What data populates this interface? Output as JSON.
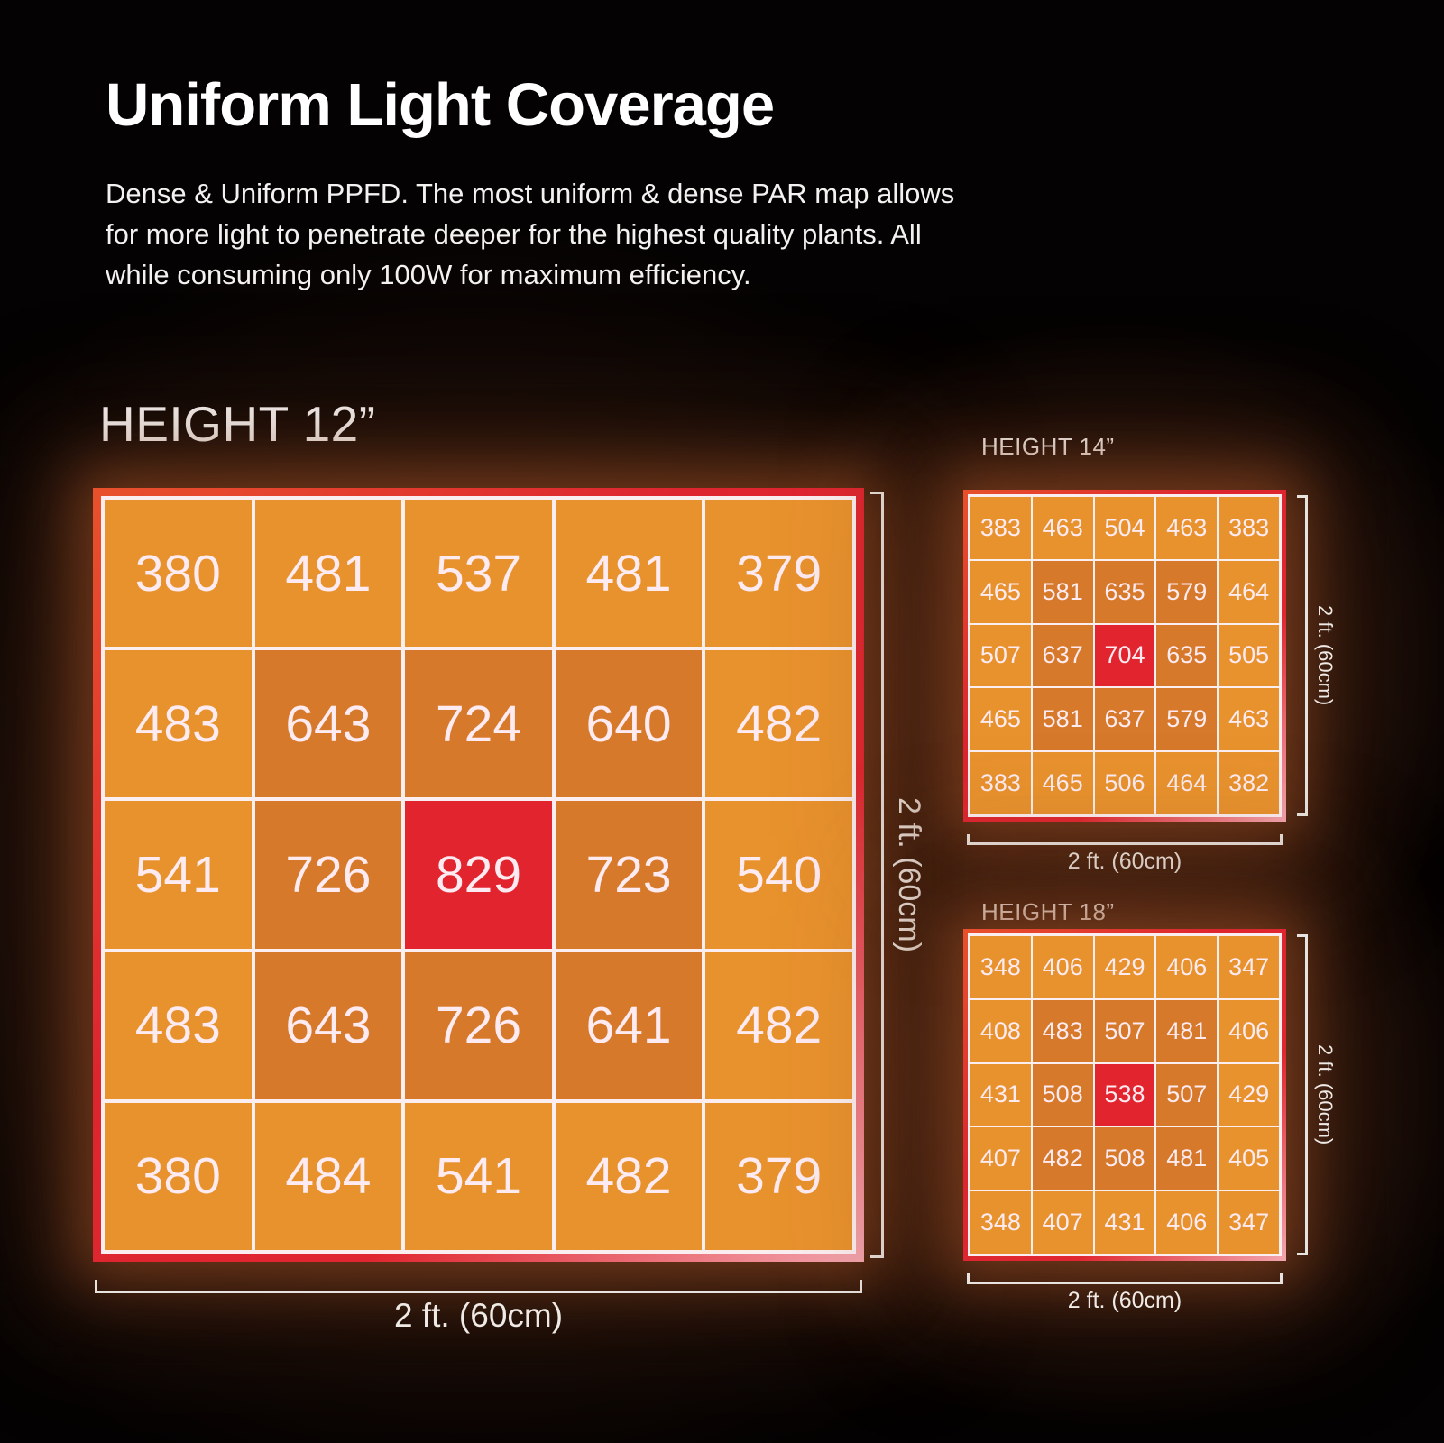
{
  "header": {
    "title": "Uniform Light Coverage",
    "description_lines": [
      "Dense & Uniform PPFD. The most uniform & dense PAR map allows",
      "for more light to penetrate deeper for the highest quality plants.  All",
      "while consuming only 100W for maximum efficiency."
    ]
  },
  "colors": {
    "background": "#040202",
    "text": "#ffffff",
    "cell_light": "#e8922e",
    "cell_dark": "#d7792a",
    "cell_hot": "#e2242e",
    "cell_text": "#fdebf1",
    "grid_line": "#fbeef0",
    "dimension_line": "#e9e3df",
    "frame_orange": "#e8512c",
    "frame_red": "#dd2530",
    "frame_pink": "#f3a6af"
  },
  "chart_data": [
    {
      "type": "heatmap",
      "title": "HEIGHT 12”",
      "width_label": "2 ft. (60cm)",
      "height_label": "2 ft. (60cm)",
      "rows": 5,
      "cols": 5,
      "values": [
        [
          380,
          481,
          537,
          481,
          379
        ],
        [
          483,
          643,
          724,
          640,
          482
        ],
        [
          541,
          726,
          829,
          723,
          540
        ],
        [
          483,
          643,
          726,
          641,
          482
        ],
        [
          380,
          484,
          541,
          482,
          379
        ]
      ],
      "levels": [
        [
          "light",
          "light",
          "light",
          "light",
          "light"
        ],
        [
          "light",
          "dark",
          "dark",
          "dark",
          "light"
        ],
        [
          "light",
          "dark",
          "hot",
          "dark",
          "light"
        ],
        [
          "light",
          "dark",
          "dark",
          "dark",
          "light"
        ],
        [
          "light",
          "light",
          "light",
          "light",
          "light"
        ]
      ]
    },
    {
      "type": "heatmap",
      "title": "HEIGHT 14”",
      "width_label": "2 ft. (60cm)",
      "height_label": "2 ft. (60cm)",
      "rows": 5,
      "cols": 5,
      "values": [
        [
          383,
          463,
          504,
          463,
          383
        ],
        [
          465,
          581,
          635,
          579,
          464
        ],
        [
          507,
          637,
          704,
          635,
          505
        ],
        [
          465,
          581,
          637,
          579,
          463
        ],
        [
          383,
          465,
          506,
          464,
          382
        ]
      ],
      "levels": [
        [
          "light",
          "light",
          "light",
          "light",
          "light"
        ],
        [
          "light",
          "dark",
          "dark",
          "dark",
          "light"
        ],
        [
          "light",
          "dark",
          "hot",
          "dark",
          "light"
        ],
        [
          "light",
          "dark",
          "dark",
          "dark",
          "light"
        ],
        [
          "light",
          "light",
          "light",
          "light",
          "light"
        ]
      ]
    },
    {
      "type": "heatmap",
      "title": "HEIGHT 18”",
      "width_label": "2 ft. (60cm)",
      "height_label": "2 ft. (60cm)",
      "rows": 5,
      "cols": 5,
      "values": [
        [
          348,
          406,
          429,
          406,
          347
        ],
        [
          408,
          483,
          507,
          481,
          406
        ],
        [
          431,
          508,
          538,
          507,
          429
        ],
        [
          407,
          482,
          508,
          481,
          405
        ],
        [
          348,
          407,
          431,
          406,
          347
        ]
      ],
      "levels": [
        [
          "light",
          "light",
          "light",
          "light",
          "light"
        ],
        [
          "light",
          "dark",
          "dark",
          "dark",
          "light"
        ],
        [
          "light",
          "dark",
          "hot",
          "dark",
          "light"
        ],
        [
          "light",
          "dark",
          "dark",
          "dark",
          "light"
        ],
        [
          "light",
          "light",
          "light",
          "light",
          "light"
        ]
      ]
    }
  ]
}
